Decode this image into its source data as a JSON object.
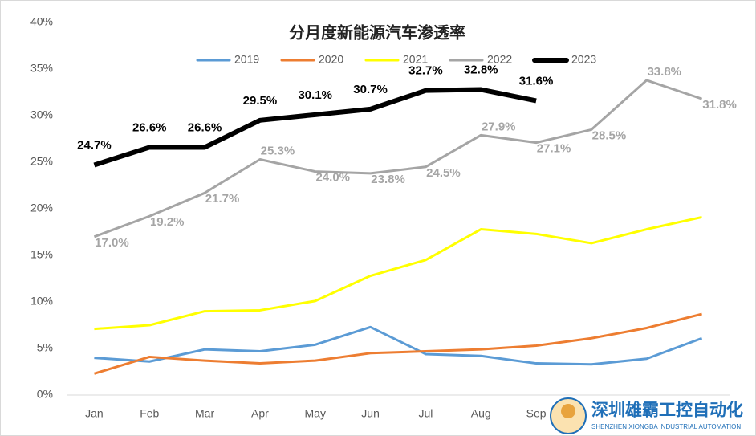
{
  "chart_data": {
    "type": "line",
    "title": "分月度新能源汽车渗透率",
    "categories": [
      "Jan",
      "Feb",
      "Mar",
      "Apr",
      "May",
      "Jun",
      "Jul",
      "Aug",
      "Sep",
      null,
      null,
      null
    ],
    "ylim": [
      0,
      40
    ],
    "yticks": [
      {
        "value": 0,
        "label": "0%"
      },
      {
        "value": 5,
        "label": "5%"
      },
      {
        "value": 10,
        "label": "10%"
      },
      {
        "value": 15,
        "label": "15%"
      },
      {
        "value": 20,
        "label": "20%"
      },
      {
        "value": 25,
        "label": "25%"
      },
      {
        "value": 30,
        "label": "30%"
      },
      {
        "value": 35,
        "label": "35%"
      },
      {
        "value": 40,
        "label": "40%"
      }
    ],
    "grid": false,
    "legend": "top",
    "series": [
      {
        "name": "2019",
        "color": "#5b9bd5",
        "values": [
          4.0,
          3.6,
          4.9,
          4.7,
          5.4,
          7.3,
          4.4,
          4.2,
          3.4,
          3.3,
          3.9,
          6.1
        ]
      },
      {
        "name": "2020",
        "color": "#ed7d31",
        "values": [
          2.3,
          4.1,
          3.7,
          3.4,
          3.7,
          4.5,
          4.7,
          4.9,
          5.3,
          6.1,
          7.2,
          8.7
        ]
      },
      {
        "name": "2021",
        "color": "#ffff00",
        "values": [
          7.1,
          7.5,
          9.0,
          9.1,
          10.1,
          12.8,
          14.5,
          17.8,
          17.3,
          16.3,
          17.8,
          19.1
        ]
      },
      {
        "name": "2022",
        "color": "#a5a5a5",
        "values": [
          17.0,
          19.2,
          21.7,
          25.3,
          24.0,
          23.8,
          24.5,
          27.9,
          27.1,
          28.5,
          33.8,
          31.8
        ],
        "value_labels": [
          "17.0%",
          "19.2%",
          "21.7%",
          "25.3%",
          "24.0%",
          "23.8%",
          "24.5%",
          "27.9%",
          "27.1%",
          "28.5%",
          "33.8%",
          "31.8%"
        ]
      },
      {
        "name": "2023",
        "color": "#000000",
        "values": [
          24.7,
          26.6,
          26.6,
          29.5,
          30.1,
          30.7,
          32.7,
          32.8,
          31.6,
          null,
          null,
          null
        ],
        "value_labels": [
          "24.7%",
          "26.6%",
          "26.6%",
          "29.5%",
          "30.1%",
          "30.7%",
          "32.7%",
          "32.8%",
          "31.6%",
          null,
          null,
          null
        ]
      }
    ]
  },
  "watermark": {
    "name": "深圳雄霸工控自动化",
    "subtitle": "SHENZHEN XIONGBA INDUSTRIAL AUTOMATION"
  }
}
